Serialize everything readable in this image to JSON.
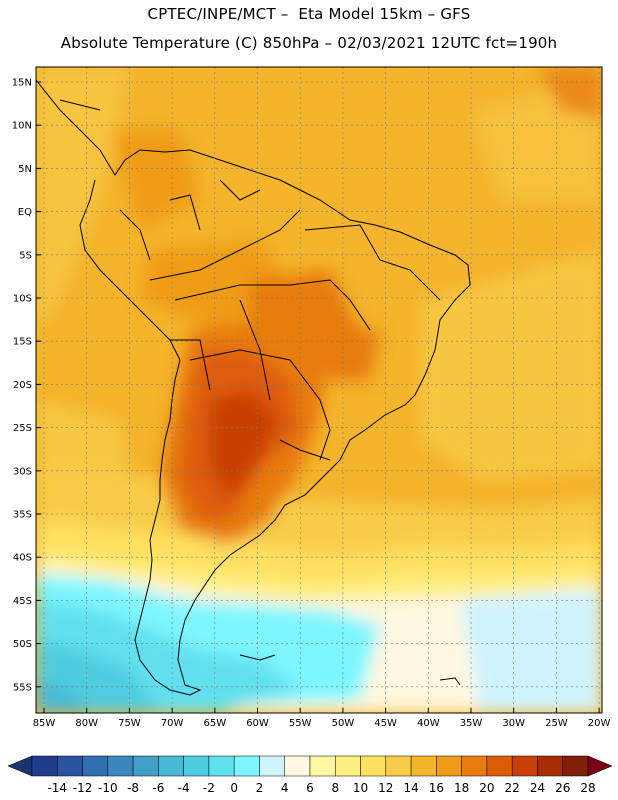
{
  "title_line1": "CPTEC/INPE/MCT –  Eta Model 15km – GFS",
  "title_line2": "Absolute Temperature (C) 850hPa – 02/03/2021 12UTC fct=190h",
  "map": {
    "lat_labels": [
      "15N",
      "10N",
      "5N",
      "EQ",
      "5S",
      "10S",
      "15S",
      "20S",
      "25S",
      "30S",
      "35S",
      "40S",
      "45S",
      "50S",
      "55S"
    ],
    "lon_labels": [
      "85W",
      "80W",
      "75W",
      "70W",
      "65W",
      "60W",
      "55W",
      "50W",
      "45W",
      "40W",
      "35W",
      "30W",
      "25W",
      "20W"
    ]
  },
  "colorbar": {
    "values": [
      "-14",
      "-12",
      "-10",
      "-8",
      "-6",
      "-4",
      "-2",
      "0",
      "2",
      "4",
      "6",
      "8",
      "10",
      "12",
      "14",
      "16",
      "18",
      "20",
      "22",
      "24",
      "26",
      "28"
    ],
    "colors": [
      "#203c8c",
      "#2a54a0",
      "#3070b0",
      "#3a88bd",
      "#40a0c8",
      "#48b8d8",
      "#50cce0",
      "#60e0ee",
      "#7ef6ff",
      "#d0f4ff",
      "#fff8e0",
      "#fff8a0",
      "#ffee80",
      "#ffe060",
      "#f8cc48",
      "#f4b42c",
      "#f09c18",
      "#e87c10",
      "#de5c08",
      "#c84006",
      "#a82c04",
      "#802008"
    ],
    "low_color": "#1a3470",
    "high_color": "#7a0018"
  }
}
